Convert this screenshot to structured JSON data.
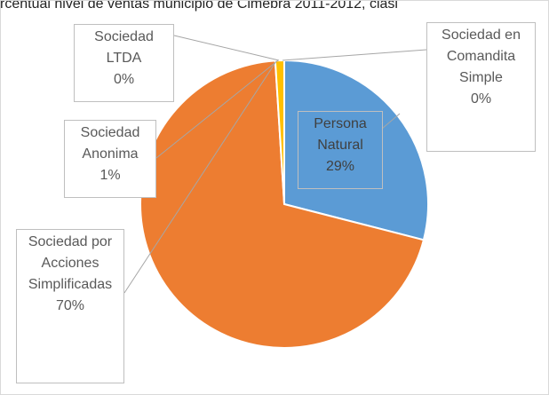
{
  "chart_data": {
    "type": "pie",
    "title": "rcentual nivel de ventas municipio de Cimebra 2011-2012, clasi",
    "categories": [
      "Persona Natural",
      "Sociedad por Acciones Simplificadas",
      "Sociedad Anonima",
      "Sociedad LTDA",
      "Sociedad en Comandita Simple"
    ],
    "values": [
      29,
      70,
      1,
      0,
      0
    ],
    "value_labels": [
      "29%",
      "70%",
      "1%",
      "0%",
      "0%"
    ],
    "colors": [
      "#5b9bd5",
      "#ed7d31",
      "#ffc000",
      "#a5a5a5",
      "#4472c4"
    ]
  }
}
